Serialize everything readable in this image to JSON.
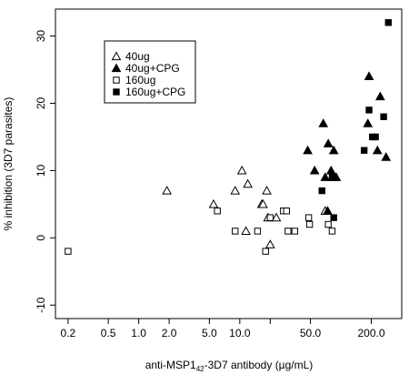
{
  "chart_data": {
    "type": "scatter",
    "title": "",
    "xlabel_pre": "anti-MSP1",
    "xlabel_sub": "42",
    "xlabel_post": "-3D7 antibody (µg/mL)",
    "ylabel": "% inhibition (3D7 parasites)",
    "x_scale": "log",
    "xlim": [
      0.15,
      400
    ],
    "ylim": [
      -12,
      34
    ],
    "x_ticks": [
      0.2,
      0.5,
      1.0,
      2.0,
      5.0,
      10.0,
      20.0,
      50.0,
      200.0
    ],
    "x_tick_labels": [
      "0.2",
      "0.5",
      "1.0",
      "2.0",
      "5.0",
      "10.0",
      "",
      "50.0",
      "200.0"
    ],
    "y_ticks": [
      -10,
      0,
      10,
      20,
      30
    ],
    "y_tick_labels": [
      "-10",
      "0",
      "10",
      "20",
      "30"
    ],
    "grid": false,
    "legend_position": "top-left",
    "series": [
      {
        "name": "40ug",
        "marker": "open-triangle",
        "points": [
          [
            1.9,
            7
          ],
          [
            5.5,
            5
          ],
          [
            9,
            7
          ],
          [
            10.5,
            10
          ],
          [
            11.5,
            1
          ],
          [
            12,
            8
          ],
          [
            16.5,
            5
          ],
          [
            17,
            5
          ],
          [
            18.5,
            7
          ],
          [
            19,
            3
          ],
          [
            20,
            -1
          ],
          [
            23,
            3
          ],
          [
            70,
            4
          ]
        ]
      },
      {
        "name": "40ug+CPG",
        "marker": "filled-triangle",
        "points": [
          [
            47,
            13
          ],
          [
            55,
            10
          ],
          [
            67,
            17
          ],
          [
            70,
            9
          ],
          [
            74,
            4
          ],
          [
            75,
            14
          ],
          [
            80,
            10
          ],
          [
            82,
            9
          ],
          [
            85,
            13
          ],
          [
            90,
            9
          ],
          [
            190,
            24
          ],
          [
            245,
            21
          ],
          [
            185,
            17
          ],
          [
            230,
            13
          ],
          [
            280,
            12
          ]
        ]
      },
      {
        "name": "160ug",
        "marker": "open-square",
        "points": [
          [
            0.2,
            -2
          ],
          [
            6,
            4
          ],
          [
            9,
            1
          ],
          [
            15,
            1
          ],
          [
            18,
            -2
          ],
          [
            20,
            3
          ],
          [
            27,
            4
          ],
          [
            29,
            4
          ],
          [
            30,
            1
          ],
          [
            35,
            1
          ],
          [
            48,
            3
          ],
          [
            49,
            2
          ],
          [
            75,
            2
          ],
          [
            82,
            1
          ]
        ]
      },
      {
        "name": "160ug+CPG",
        "marker": "filled-square",
        "points": [
          [
            65,
            7
          ],
          [
            82,
            9
          ],
          [
            85,
            3
          ],
          [
            170,
            13
          ],
          [
            190,
            19
          ],
          [
            205,
            15
          ],
          [
            220,
            15
          ],
          [
            265,
            18
          ],
          [
            295,
            32
          ]
        ]
      }
    ]
  }
}
